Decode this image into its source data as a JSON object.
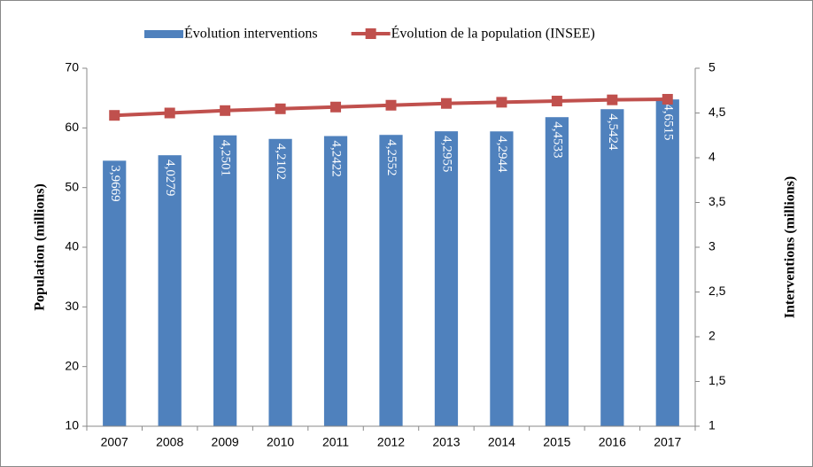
{
  "chart_data": {
    "type": "bar-line",
    "ylabel": "Population (millions)",
    "y2label": "Interventions (millions)",
    "categories": [
      "2007",
      "2008",
      "2009",
      "2010",
      "2011",
      "2012",
      "2013",
      "2014",
      "2015",
      "2016",
      "2017"
    ],
    "ylim": [
      10,
      70
    ],
    "yticks": [
      10,
      20,
      30,
      40,
      50,
      60,
      70
    ],
    "y2lim": [
      1,
      5
    ],
    "y2ticks": [
      1,
      {
        "value": 1.5,
        "label": "1,5"
      },
      2,
      {
        "value": 2.5,
        "label": "2,5"
      },
      3,
      {
        "value": 3.5,
        "label": "3,5"
      },
      4,
      {
        "value": 4.5,
        "label": "4,5"
      },
      5
    ],
    "legend": "top",
    "grid": false,
    "series": [
      {
        "name": "Évolution interventions",
        "type": "bar",
        "axis": "y2",
        "color": "#4f81bd",
        "values": [
          3.9669,
          4.0279,
          4.2501,
          4.2102,
          4.2422,
          4.2552,
          4.2955,
          4.2944,
          4.4533,
          4.5424,
          4.6515
        ],
        "value_labels": [
          "3,9669",
          "4,0279",
          "4,2501",
          "4,2102",
          "4,2422",
          "4,2552",
          "4,2955",
          "4,2944",
          "4,4533",
          "4,5424",
          "4,6515"
        ]
      },
      {
        "name": "Évolution de la population (INSEE)",
        "type": "line",
        "axis": "y",
        "color": "#c0504d",
        "values": [
          62.1,
          62.5,
          62.9,
          63.2,
          63.5,
          63.8,
          64.1,
          64.3,
          64.5,
          64.7,
          64.8
        ]
      }
    ]
  }
}
